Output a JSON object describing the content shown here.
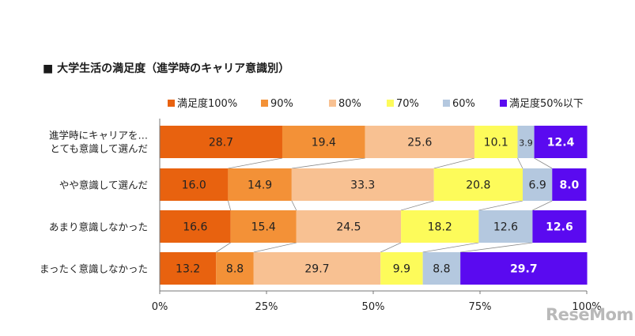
{
  "title": "■ 大学生活の満足度（進学時のキャリア意識別）",
  "watermark": "ReseMom",
  "chart_data": {
    "type": "bar",
    "orientation": "horizontal",
    "stacked": true,
    "percent_stacked": true,
    "categories": [
      [
        "進学時にキャリアを…",
        "とても意識して選んだ"
      ],
      [
        "やや意識して選んだ"
      ],
      [
        "あまり意識しなかった"
      ],
      [
        "まったく意識しなかった"
      ]
    ],
    "series": [
      {
        "name": "満足度100%",
        "color": "#e8620f",
        "label_color": "#222222",
        "values": [
          28.7,
          16.0,
          16.6,
          13.2
        ]
      },
      {
        "name": "90%",
        "color": "#f39137",
        "label_color": "#222222",
        "values": [
          19.4,
          14.9,
          15.4,
          8.8
        ]
      },
      {
        "name": "80%",
        "color": "#f8c192",
        "label_color": "#222222",
        "values": [
          25.6,
          33.3,
          24.5,
          29.7
        ]
      },
      {
        "name": "70%",
        "color": "#fdfb5a",
        "label_color": "#222222",
        "values": [
          10.1,
          20.8,
          18.2,
          9.9
        ]
      },
      {
        "name": "60%",
        "color": "#b4c8df",
        "label_color": "#222222",
        "values": [
          3.9,
          6.9,
          12.6,
          8.8
        ]
      },
      {
        "name": "満足度50%以下",
        "color": "#5a0af0",
        "label_color": "#ffffff",
        "values": [
          12.4,
          8.0,
          12.6,
          29.7
        ]
      }
    ],
    "xlim": [
      0,
      100
    ],
    "xticks": [
      "0%",
      "25%",
      "50%",
      "75%",
      "100%"
    ],
    "legend_position": "top",
    "connector_lines": true,
    "grid": false
  }
}
